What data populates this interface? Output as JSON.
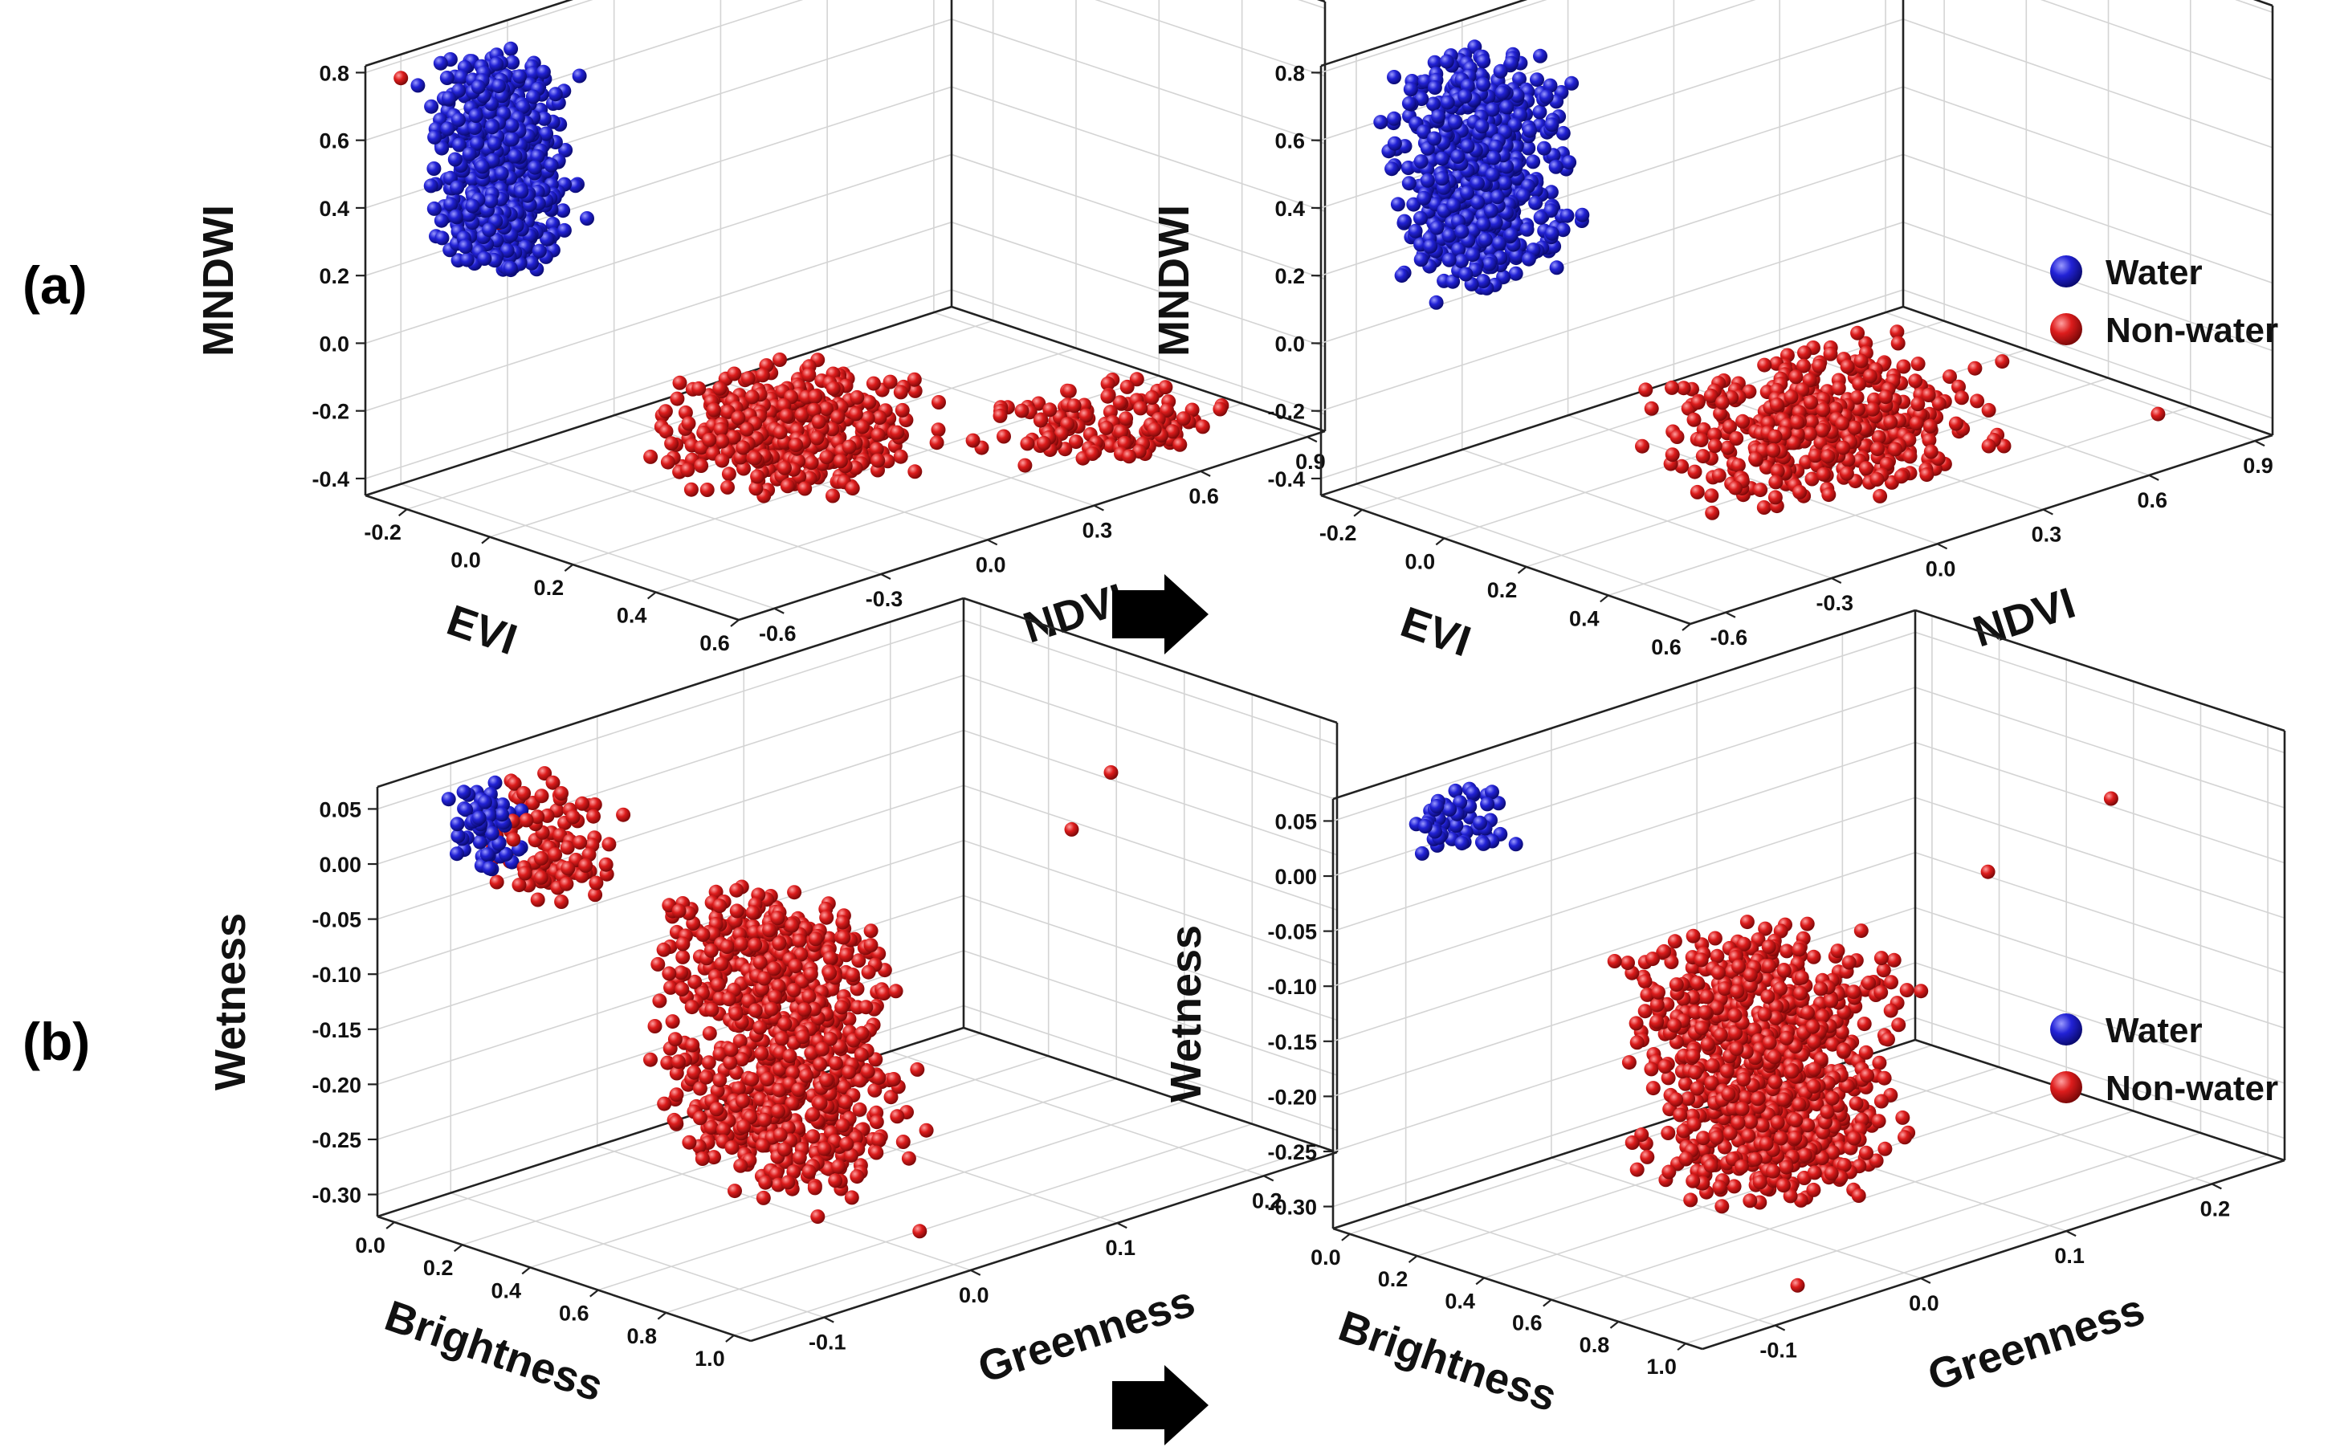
{
  "panel_labels": [
    "(a)",
    "(b)"
  ],
  "legend": [
    {
      "label": "Water",
      "color": "#1d1dc8"
    },
    {
      "label": "Non-water",
      "color": "#d41a1a"
    }
  ],
  "arrow": "right-arrow",
  "chart_data": [
    {
      "id": "a-left",
      "type": "scatter3d",
      "row": "a",
      "col": "left",
      "x_name": "EVI",
      "y_name": "NDVI",
      "z_name": "MNDWI",
      "xlim": [
        -0.3,
        0.6
      ],
      "ylim": [
        -0.7,
        0.95
      ],
      "zlim": [
        -0.45,
        0.82
      ],
      "xticks": [
        "-0.2",
        "0.0",
        "0.2",
        "0.4",
        "0.6"
      ],
      "xtick_values": [
        -0.2,
        0.0,
        0.2,
        0.4,
        0.6
      ],
      "yticks": [
        "-0.6",
        "-0.3",
        "0.0",
        "0.3",
        "0.6",
        "0.9"
      ],
      "ytick_values": [
        -0.6,
        -0.3,
        0.0,
        0.3,
        0.6,
        0.9
      ],
      "zticks": [
        "-0.4",
        "-0.2",
        "0.0",
        "0.2",
        "0.4",
        "0.6",
        "0.8"
      ],
      "ztick_values": [
        -0.4,
        -0.2,
        0.0,
        0.2,
        0.4,
        0.6,
        0.8
      ],
      "series": [
        {
          "name": "Water",
          "color": "#1d1dc8",
          "n": 650,
          "seed": 11,
          "clusters": [
            {
              "x": [
                -0.28,
                -0.1
              ],
              "y": [
                -0.6,
                -0.3
              ],
              "z": [
                0.18,
                0.78
              ],
              "bias": 1.0
            }
          ]
        },
        {
          "name": "Non-water",
          "color": "#d41a1a",
          "n": 520,
          "seed": 23,
          "clusters": [
            {
              "x": [
                -0.05,
                0.3
              ],
              "y": [
                -0.3,
                0.3
              ],
              "z": [
                -0.44,
                -0.2
              ],
              "bias": 1.0
            },
            {
              "x": [
                0.25,
                0.55
              ],
              "y": [
                0.3,
                0.85
              ],
              "z": [
                -0.44,
                -0.34
              ],
              "bias": 0.3
            }
          ],
          "outliers": [
            {
              "x": -0.3,
              "y": -0.6,
              "z": 0.75
            },
            {
              "x": -0.15,
              "y": -0.5,
              "z": 0.35
            }
          ]
        }
      ]
    },
    {
      "id": "a-right",
      "type": "scatter3d",
      "row": "a",
      "col": "right",
      "x_name": "EVI",
      "y_name": "NDVI",
      "z_name": "MNDWI",
      "xlim": [
        -0.3,
        0.6
      ],
      "ylim": [
        -0.7,
        0.95
      ],
      "zlim": [
        -0.45,
        0.82
      ],
      "xticks": [
        "-0.2",
        "0.0",
        "0.2",
        "0.4",
        "0.6"
      ],
      "xtick_values": [
        -0.2,
        0.0,
        0.2,
        0.4,
        0.6
      ],
      "yticks": [
        "-0.6",
        "-0.3",
        "0.0",
        "0.3",
        "0.6",
        "0.9"
      ],
      "ytick_values": [
        -0.6,
        -0.3,
        0.0,
        0.3,
        0.6,
        0.9
      ],
      "zticks": [
        "-0.4",
        "-0.2",
        "0.0",
        "0.2",
        "0.4",
        "0.6",
        "0.8"
      ],
      "ztick_values": [
        -0.4,
        -0.2,
        0.0,
        0.2,
        0.4,
        0.6,
        0.8
      ],
      "series": [
        {
          "name": "Water",
          "color": "#1d1dc8",
          "n": 620,
          "seed": 37,
          "clusters": [
            {
              "x": [
                -0.28,
                -0.05
              ],
              "y": [
                -0.6,
                -0.2
              ],
              "z": [
                0.15,
                0.78
              ],
              "bias": 1.0
            }
          ]
        },
        {
          "name": "Non-water",
          "color": "#d41a1a",
          "n": 430,
          "seed": 41,
          "clusters": [
            {
              "x": [
                0.05,
                0.4
              ],
              "y": [
                -0.3,
                0.5
              ],
              "z": [
                -0.44,
                -0.15
              ],
              "bias": 1.0
            }
          ],
          "outliers": [
            {
              "x": 0.45,
              "y": 0.8,
              "z": -0.4
            }
          ]
        }
      ]
    },
    {
      "id": "b-left",
      "type": "scatter3d",
      "row": "b",
      "col": "left",
      "x_name": "Brightness",
      "y_name": "Greenness",
      "z_name": "Wetness",
      "xlim": [
        -0.05,
        1.05
      ],
      "ylim": [
        -0.15,
        0.25
      ],
      "zlim": [
        -0.32,
        0.07
      ],
      "xticks": [
        "0.0",
        "0.2",
        "0.4",
        "0.6",
        "0.8",
        "1.0"
      ],
      "xtick_values": [
        0.0,
        0.2,
        0.4,
        0.6,
        0.8,
        1.0
      ],
      "yticks": [
        "-0.1",
        "0.0",
        "0.1",
        "0.2"
      ],
      "ytick_values": [
        -0.1,
        0.0,
        0.1,
        0.2
      ],
      "zticks": [
        "-0.30",
        "-0.25",
        "-0.20",
        "-0.15",
        "-0.10",
        "-0.05",
        "0.00",
        "0.05"
      ],
      "ztick_values": [
        -0.3,
        -0.25,
        -0.2,
        -0.15,
        -0.1,
        -0.05,
        0.0,
        0.05
      ],
      "series": [
        {
          "name": "Water",
          "color": "#1d1dc8",
          "n": 60,
          "seed": 53,
          "clusters": [
            {
              "x": [
                0.0,
                0.12
              ],
              "y": [
                -0.12,
                -0.08
              ],
              "z": [
                -0.02,
                0.06
              ],
              "bias": 1.0
            }
          ]
        },
        {
          "name": "Non-water",
          "color": "#d41a1a",
          "n": 900,
          "seed": 59,
          "clusters": [
            {
              "x": [
                0.25,
                0.75
              ],
              "y": [
                -0.05,
                0.05
              ],
              "z": [
                -0.3,
                -0.05
              ],
              "bias": 1.0
            },
            {
              "x": [
                0.0,
                0.3
              ],
              "y": [
                -0.1,
                -0.05
              ],
              "z": [
                -0.05,
                0.06
              ],
              "bias": 0.12
            }
          ],
          "outliers": [
            {
              "x": 0.6,
              "y": 0.2,
              "z": 0.0
            },
            {
              "x": 0.7,
              "y": 0.15,
              "z": -0.02
            },
            {
              "x": 0.9,
              "y": 0.0,
              "z": -0.3
            }
          ]
        }
      ]
    },
    {
      "id": "b-right",
      "type": "scatter3d",
      "row": "b",
      "col": "right",
      "x_name": "Brightness",
      "y_name": "Greenness",
      "z_name": "Wetness",
      "xlim": [
        -0.05,
        1.05
      ],
      "ylim": [
        -0.15,
        0.25
      ],
      "zlim": [
        -0.32,
        0.07
      ],
      "xticks": [
        "0.0",
        "0.2",
        "0.4",
        "0.6",
        "0.8",
        "1.0"
      ],
      "xtick_values": [
        0.0,
        0.2,
        0.4,
        0.6,
        0.8,
        1.0
      ],
      "yticks": [
        "-0.1",
        "0.0",
        "0.1",
        "0.2"
      ],
      "ytick_values": [
        -0.1,
        0.0,
        0.1,
        0.2
      ],
      "zticks": [
        "-0.30",
        "-0.25",
        "-0.20",
        "-0.15",
        "-0.10",
        "-0.05",
        "0.00",
        "0.05"
      ],
      "ztick_values": [
        -0.3,
        -0.25,
        -0.2,
        -0.15,
        -0.1,
        -0.05,
        0.0,
        0.05
      ],
      "series": [
        {
          "name": "Water",
          "color": "#1d1dc8",
          "n": 55,
          "seed": 67,
          "clusters": [
            {
              "x": [
                0.0,
                0.1
              ],
              "y": [
                -0.12,
                -0.05
              ],
              "z": [
                0.0,
                0.06
              ],
              "bias": 1.0
            }
          ]
        },
        {
          "name": "Non-water",
          "color": "#d41a1a",
          "n": 850,
          "seed": 71,
          "clusters": [
            {
              "x": [
                0.3,
                0.75
              ],
              "y": [
                -0.05,
                0.08
              ],
              "z": [
                -0.3,
                -0.08
              ],
              "bias": 1.0
            }
          ],
          "outliers": [
            {
              "x": 0.75,
              "y": 0.2,
              "z": 0.0
            },
            {
              "x": 0.6,
              "y": 0.15,
              "z": -0.06
            },
            {
              "x": 0.9,
              "y": -0.05,
              "z": -0.32
            }
          ]
        }
      ]
    }
  ]
}
